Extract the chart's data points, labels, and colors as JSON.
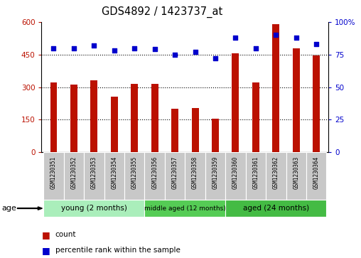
{
  "title": "GDS4892 / 1423737_at",
  "samples": [
    "GSM1230351",
    "GSM1230352",
    "GSM1230353",
    "GSM1230354",
    "GSM1230355",
    "GSM1230356",
    "GSM1230357",
    "GSM1230358",
    "GSM1230359",
    "GSM1230360",
    "GSM1230361",
    "GSM1230362",
    "GSM1230363",
    "GSM1230364"
  ],
  "counts": [
    320,
    310,
    330,
    255,
    315,
    315,
    200,
    205,
    155,
    455,
    320,
    590,
    480,
    445
  ],
  "percentile_ranks": [
    80,
    80,
    82,
    78,
    80,
    79,
    75,
    77,
    72,
    88,
    80,
    90,
    88,
    83
  ],
  "groups": [
    {
      "label": "young (2 months)",
      "start": 0,
      "end": 5,
      "color": "#90EE90"
    },
    {
      "label": "middle aged (12 months)",
      "start": 5,
      "end": 9,
      "color": "#66CC66"
    },
    {
      "label": "aged (24 months)",
      "start": 9,
      "end": 14,
      "color": "#44BB44"
    }
  ],
  "ylim_left": [
    0,
    600
  ],
  "ylim_right": [
    0,
    100
  ],
  "yticks_left": [
    0,
    150,
    300,
    450,
    600
  ],
  "yticks_right": [
    0,
    25,
    50,
    75,
    100
  ],
  "bar_color": "#BB1100",
  "dot_color": "#0000CC",
  "xlabel_area_color": "#C8C8C8",
  "age_label": "age",
  "legend_count": "count",
  "legend_percentile": "percentile rank within the sample",
  "group_colors": [
    "#AAEEBB",
    "#55CC55",
    "#44BB44"
  ]
}
